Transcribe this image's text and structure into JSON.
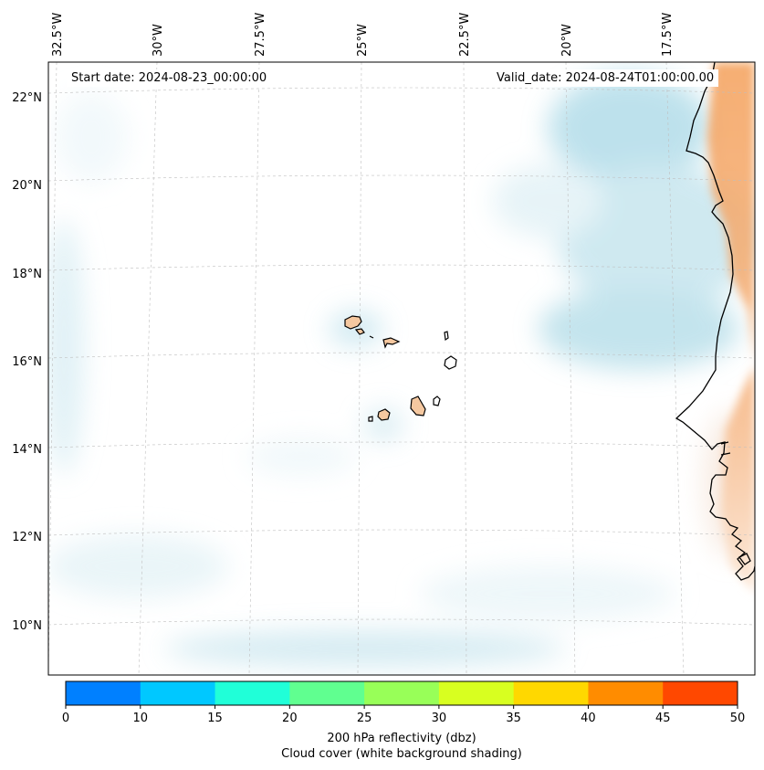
{
  "header": {
    "start_date": "Start date: 2024-08-23_00:00:00",
    "valid_date": "Valid_date: 2024-08-24T01:00:00.00"
  },
  "axes": {
    "lon_labels": [
      "32.5°W",
      "30°W",
      "27.5°W",
      "25°W",
      "22.5°W",
      "20°W",
      "17.5°W"
    ],
    "lat_labels": [
      "22°N",
      "20°N",
      "18°N",
      "16°N",
      "14°N",
      "12°N",
      "10°N"
    ]
  },
  "colorbar": {
    "ticks": [
      "0",
      "10",
      "15",
      "20",
      "25",
      "30",
      "35",
      "40",
      "45",
      "50"
    ],
    "colors": [
      "#0080ff",
      "#00c8ff",
      "#20ffd8",
      "#60ff90",
      "#98ff58",
      "#d8ff20",
      "#ffd800",
      "#ff8c00",
      "#ff4800"
    ],
    "label_line1": "200 hPa reflectivity (dbz)",
    "label_line2": "Cloud cover (white background shading)"
  },
  "colors": {
    "land_warm": "#f4a560",
    "island_fill": "#f5c8a0",
    "cloud": "#a8d8e6",
    "coast": "#000000"
  }
}
